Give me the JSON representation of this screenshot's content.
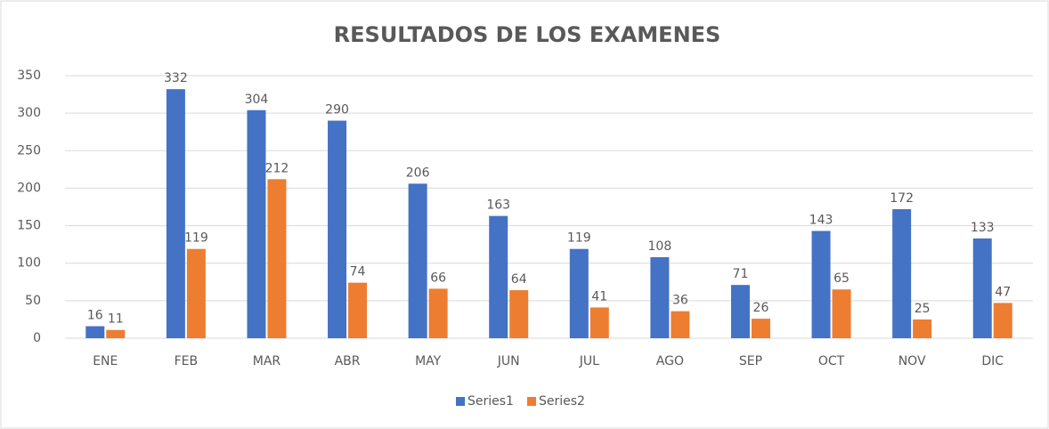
{
  "chart_data": {
    "type": "bar",
    "title": "RESULTADOS DE LOS EXAMENES",
    "categories": [
      "ENE",
      "FEB",
      "MAR",
      "ABR",
      "MAY",
      "JUN",
      "JUL",
      "AGO",
      "SEP",
      "OCT",
      "NOV",
      "DIC"
    ],
    "series": [
      {
        "name": "Series1",
        "color": "#4472c4",
        "values": [
          16,
          332,
          304,
          290,
          206,
          163,
          119,
          108,
          71,
          143,
          172,
          133
        ]
      },
      {
        "name": "Series2",
        "color": "#ed7d31",
        "values": [
          11,
          119,
          212,
          74,
          66,
          64,
          41,
          36,
          26,
          65,
          25,
          47
        ]
      }
    ],
    "ylim": [
      0,
      350
    ],
    "yticks": [
      0,
      50,
      100,
      150,
      200,
      250,
      300,
      350
    ],
    "grid": true,
    "legend": "bottom"
  }
}
